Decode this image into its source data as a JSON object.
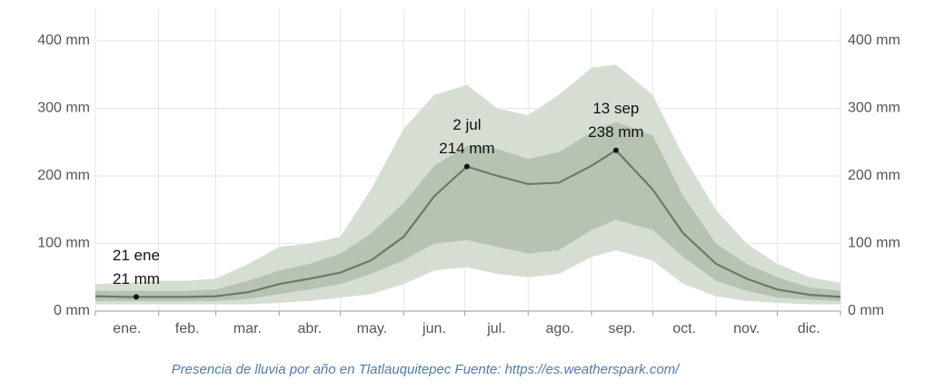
{
  "chart_data": {
    "type": "line",
    "caption": "Presencia de lluvia por año en Tlatlauquitepec Fuente: https://es.weatherspark.com/",
    "categories": [
      "ene.",
      "feb.",
      "mar.",
      "abr.",
      "may.",
      "jun.",
      "jul.",
      "ago.",
      "sep.",
      "oct.",
      "nov.",
      "dic."
    ],
    "xticks": [
      0,
      31,
      59,
      90,
      120,
      151,
      181,
      212,
      243,
      273,
      304,
      334,
      365
    ],
    "xlim": [
      0,
      365
    ],
    "ylim": [
      0,
      400
    ],
    "yticks": [
      {
        "value": 0,
        "label": "0 mm"
      },
      {
        "value": 100,
        "label": "100 mm"
      },
      {
        "value": 200,
        "label": "200 mm"
      },
      {
        "value": 300,
        "label": "300 mm"
      },
      {
        "value": 400,
        "label": "400 mm"
      }
    ],
    "y2lim": [
      0,
      400
    ],
    "y2ticks": [
      {
        "value": 0,
        "label": "0 mm"
      },
      {
        "value": 100,
        "label": "100 mm"
      },
      {
        "value": 200,
        "label": "200 mm"
      },
      {
        "value": 300,
        "label": "300 mm"
      },
      {
        "value": 400,
        "label": "400 mm"
      }
    ],
    "grid": true,
    "x": [
      0,
      15,
      31,
      45,
      59,
      75,
      90,
      105,
      120,
      135,
      151,
      166,
      182,
      197,
      212,
      227,
      243,
      255,
      273,
      288,
      304,
      319,
      334,
      350,
      365
    ],
    "bands": [
      {
        "color": "#d6ded4",
        "upper": [
          40,
          42,
          45,
          45,
          48,
          70,
          95,
          100,
          110,
          180,
          270,
          320,
          335,
          300,
          290,
          320,
          360,
          365,
          320,
          230,
          150,
          100,
          70,
          50,
          42
        ],
        "lower": [
          10,
          10,
          10,
          10,
          10,
          10,
          12,
          15,
          20,
          25,
          40,
          60,
          65,
          55,
          50,
          55,
          80,
          90,
          75,
          40,
          22,
          15,
          12,
          10,
          10
        ]
      },
      {
        "color": "#b6c3b3",
        "upper": [
          30,
          30,
          30,
          30,
          32,
          45,
          60,
          70,
          85,
          115,
          160,
          215,
          245,
          240,
          225,
          235,
          265,
          280,
          260,
          170,
          100,
          70,
          50,
          35,
          30
        ],
        "lower": [
          15,
          15,
          15,
          15,
          15,
          18,
          25,
          32,
          40,
          55,
          75,
          100,
          105,
          95,
          85,
          90,
          120,
          135,
          120,
          80,
          45,
          30,
          20,
          17,
          15
        ]
      }
    ],
    "line_color": "#6b7a67",
    "values": [
      22,
      21,
      21,
      21,
      22,
      28,
      40,
      48,
      57,
      75,
      110,
      170,
      214,
      200,
      188,
      190,
      215,
      238,
      180,
      115,
      70,
      48,
      32,
      24,
      21
    ],
    "annotations": [
      {
        "x": 20,
        "y": 21,
        "date_label": "21 ene",
        "value_label": "21 mm"
      },
      {
        "x": 182,
        "y": 214,
        "date_label": "2 jul",
        "value_label": "214 mm"
      },
      {
        "x": 255,
        "y": 238,
        "date_label": "13 sep",
        "value_label": "238 mm"
      }
    ]
  }
}
